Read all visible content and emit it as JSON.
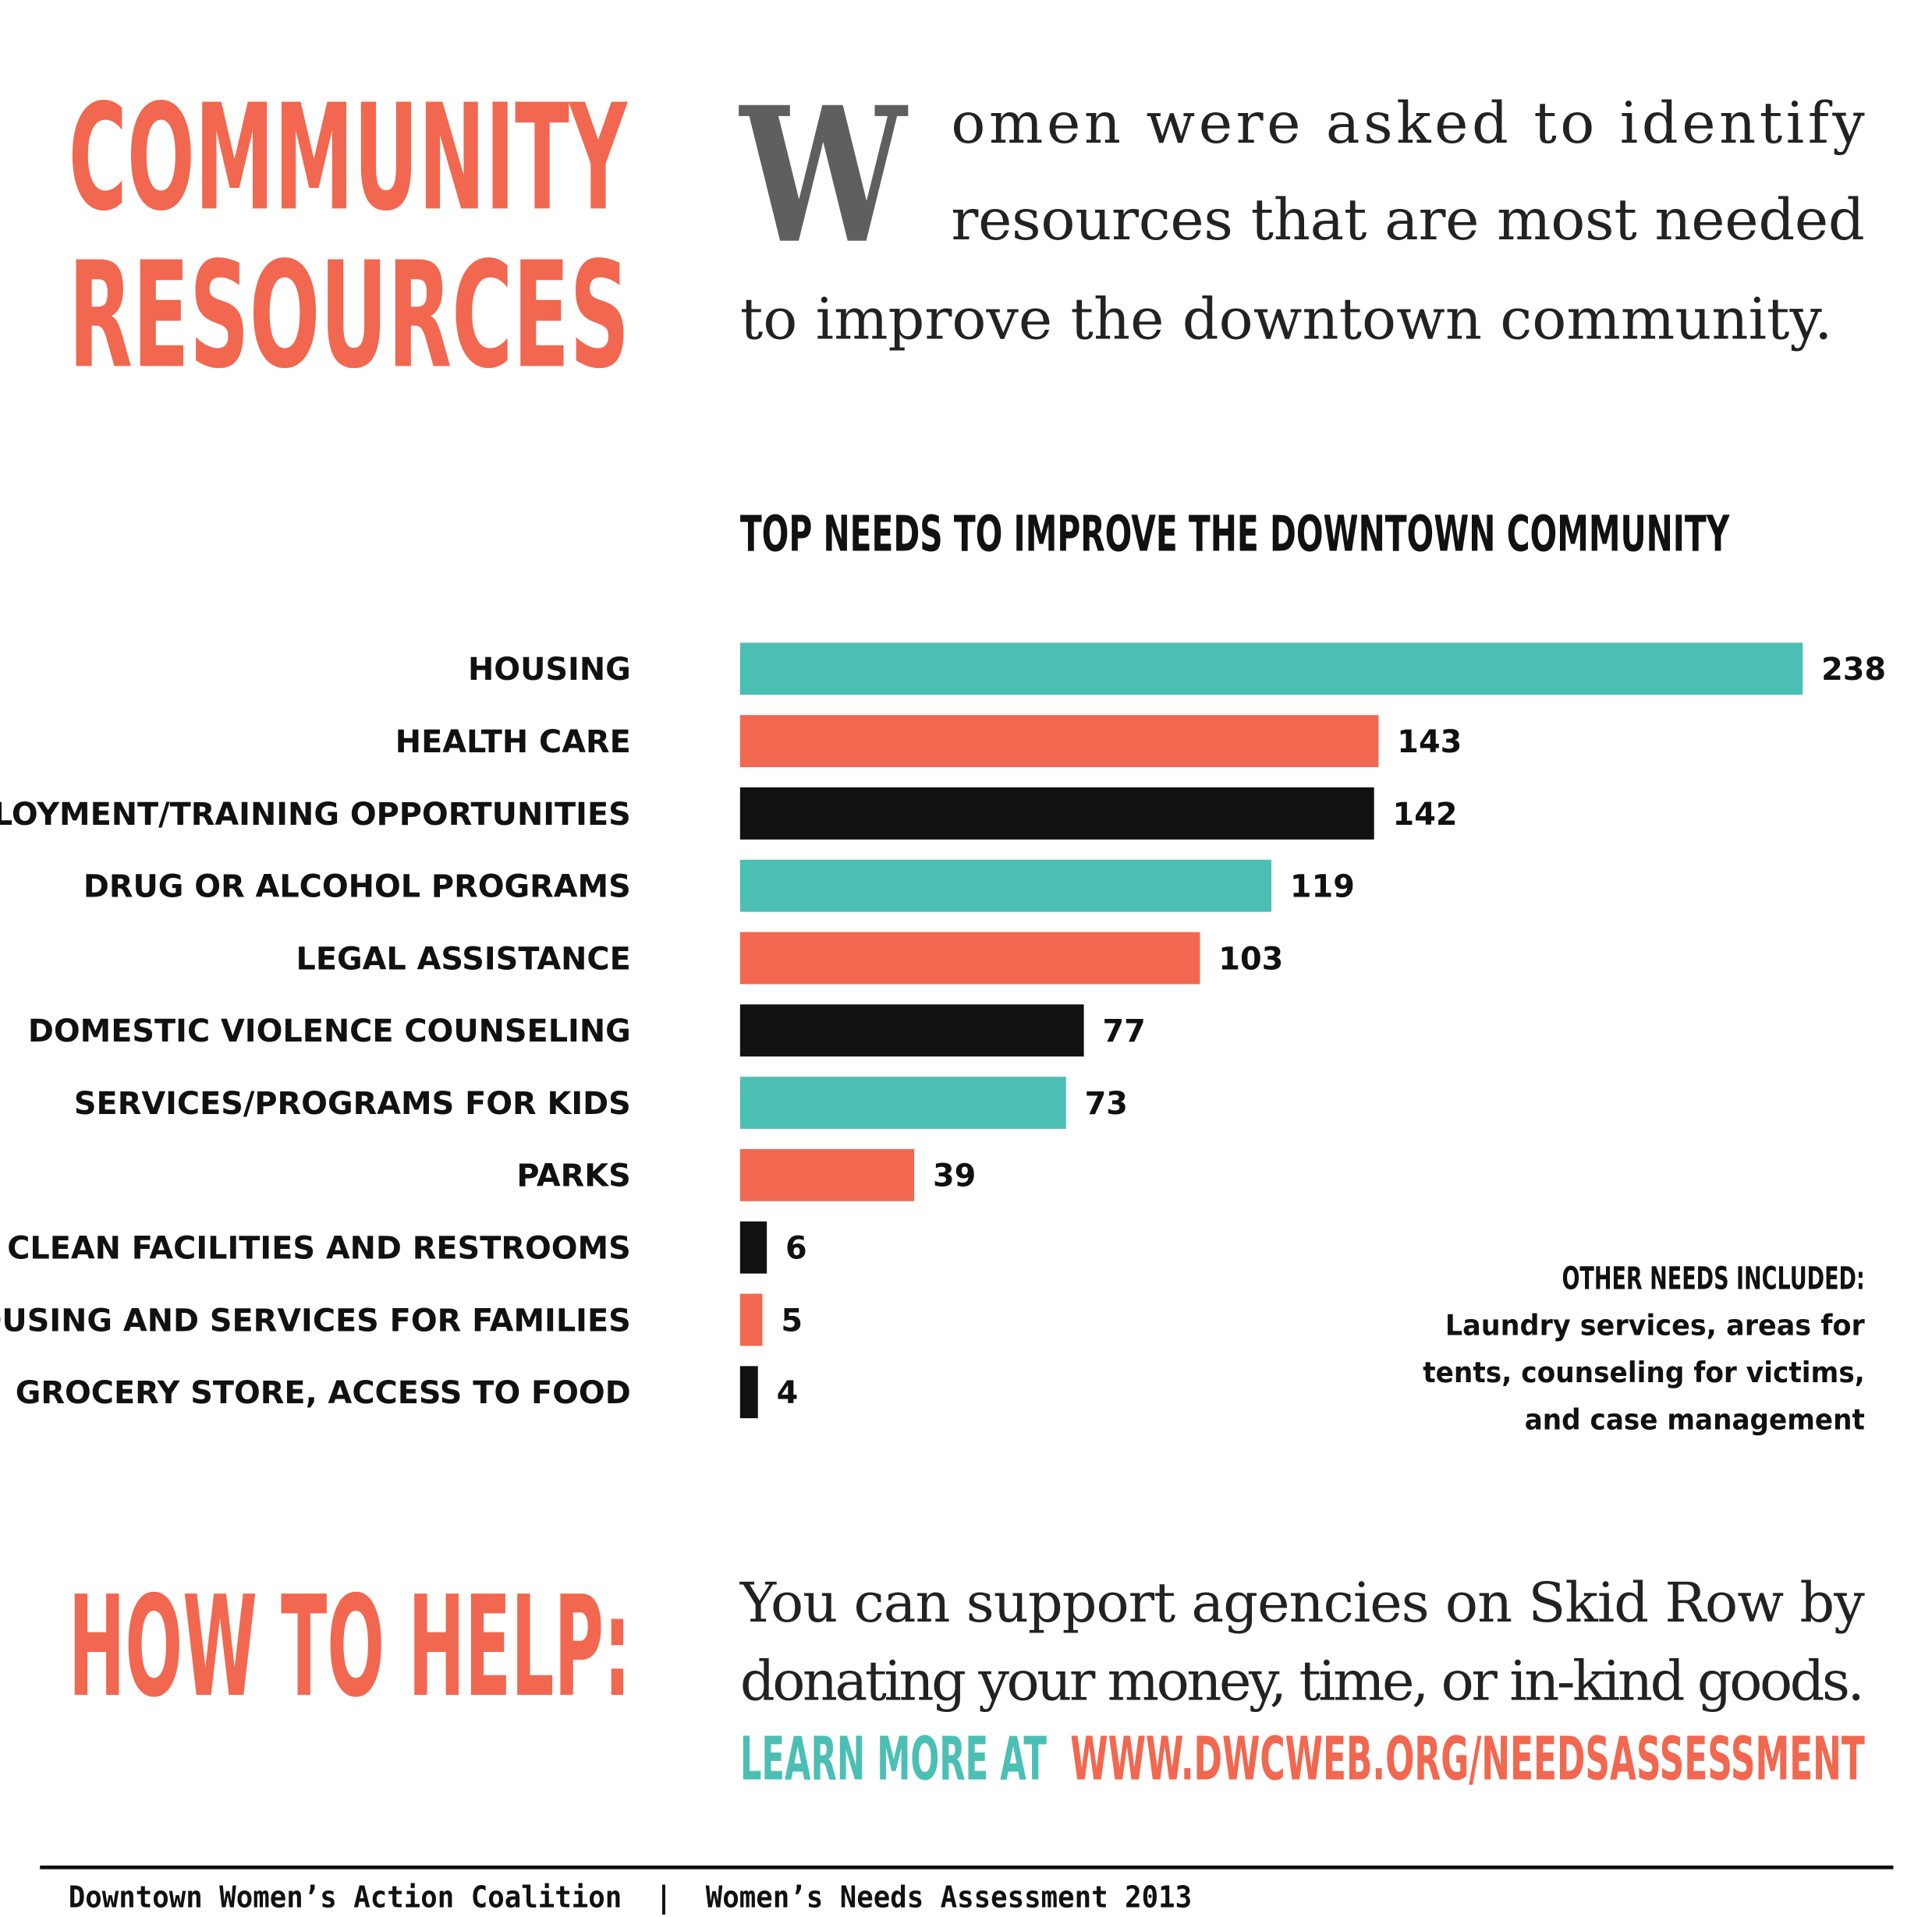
{
  "header": {
    "title_lines": [
      "COMMUNITY",
      "RESOURCES"
    ],
    "drop_cap": "W",
    "intro_lines": [
      "omen were asked to identify",
      "resources that are most needed",
      "to improve the downtown community."
    ]
  },
  "chart_data": {
    "type": "bar",
    "title": "TOP NEEDS TO IMPROVE THE DOWNTOWN COMMUNITY",
    "categories": [
      "HOUSING",
      "HEALTH CARE",
      "EMPLOYMENT/TRAINING OPPORTUNITIES",
      "DRUG OR ALCOHOL PROGRAMS",
      "LEGAL ASSISTANCE",
      "DOMESTIC VIOLENCE COUNSELING",
      "SERVICES/PROGRAMS FOR KIDS",
      "PARKS",
      "CLEAN FACILITIES AND RESTROOMS",
      "HOUSING AND SERVICES FOR FAMILIES",
      "GROCERY STORE, ACCESS TO FOOD"
    ],
    "values": [
      238,
      143,
      142,
      119,
      103,
      77,
      73,
      39,
      6,
      5,
      4
    ],
    "colors": [
      "#4bbfb4",
      "#f2674f",
      "#111111",
      "#4bbfb4",
      "#f2674f",
      "#111111",
      "#4bbfb4",
      "#f2674f",
      "#111111",
      "#f2674f",
      "#111111"
    ],
    "note": {
      "heading": "OTHER NEEDS INCLUDED:",
      "lines": [
        "Laundry services, areas for",
        "tents, counseling for victims,",
        "and case management"
      ]
    }
  },
  "help": {
    "heading": "HOW TO HELP:",
    "lines": [
      "You can support agencies on Skid Row by",
      "donating your money, time, or in-kind goods."
    ],
    "learn_more": "LEARN MORE AT",
    "url": "WWW.DWCWEB.ORG/NEEDSASSESSMENT"
  },
  "footer": "Downtown Women’s Action Coalition  |  Women’s Needs Assessment 2013"
}
